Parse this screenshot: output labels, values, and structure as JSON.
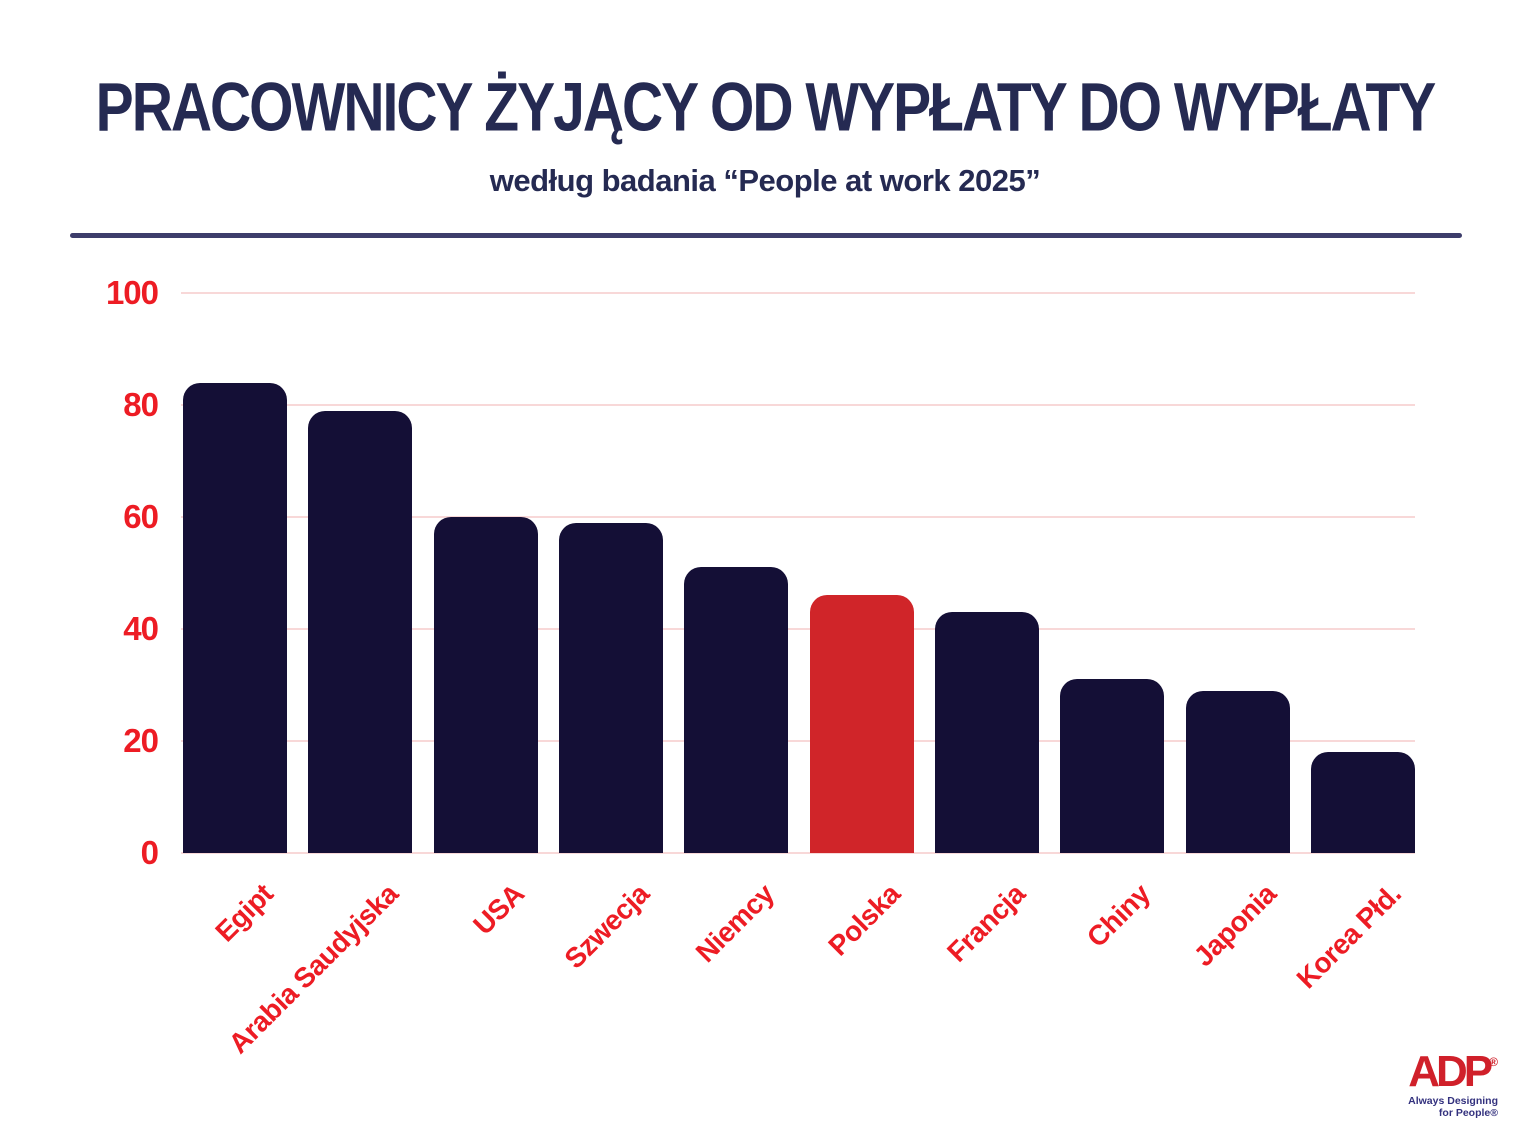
{
  "title": "PRACOWNICY ŻYJĄCY OD WYPŁATY DO WYPŁATY",
  "subtitle": "według badania “People at work 2025”",
  "chart_data": {
    "type": "bar",
    "title": "PRACOWNICY ŻYJĄCY OD WYPŁATY DO WYPŁATY",
    "subtitle": "według badania “People at work 2025”",
    "categories": [
      "Egipt",
      "Arabia Saudyjska",
      "USA",
      "Szwecja",
      "Niemcy",
      "Polska",
      "Francja",
      "Chiny",
      "Japonia",
      "Korea Płd."
    ],
    "values": [
      84,
      79,
      60,
      59,
      51,
      46,
      43,
      31,
      29,
      18
    ],
    "unit": "percent",
    "highlight_category": "Polska",
    "xlabel": "",
    "ylabel": "",
    "ylim": [
      0,
      100
    ],
    "yticks": [
      0,
      20,
      40,
      60,
      80,
      100
    ],
    "grid": "horizontal",
    "legend": "none",
    "colors": {
      "bar": "#140f36",
      "highlight": "#d02529",
      "axis_labels": "#ed1c24",
      "gridline": "#f8d8d8",
      "title": "#252a52",
      "divider": "#3d3d6b"
    }
  },
  "logo": {
    "name": "ADP",
    "registered": "®",
    "tagline_line1": "Always Designing",
    "tagline_line2": "for People®"
  }
}
